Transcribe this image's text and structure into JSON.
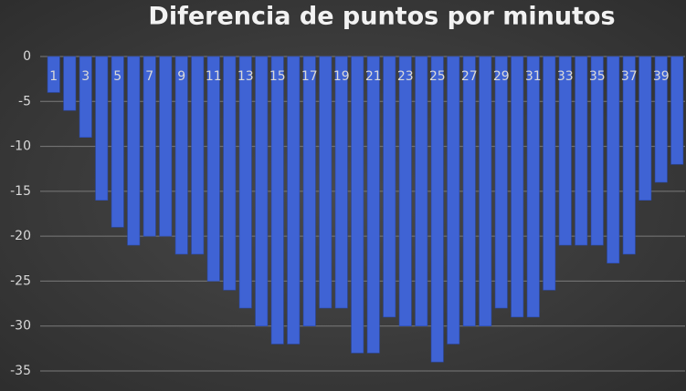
{
  "chart_data": {
    "type": "bar",
    "title": "Diferencia de puntos por minutos",
    "categories": [
      "1",
      null,
      "3",
      null,
      "5",
      null,
      "7",
      null,
      "9",
      null,
      "11",
      null,
      "13",
      null,
      "15",
      null,
      "17",
      null,
      "19",
      null,
      "21",
      null,
      "23",
      null,
      "25",
      null,
      "27",
      null,
      "29",
      null,
      "31",
      null,
      "33",
      null,
      "35",
      null,
      "37",
      null,
      "39",
      null
    ],
    "values": [
      -4,
      -6,
      -9,
      -16,
      -19,
      -21,
      -20,
      -20,
      -22,
      -22,
      -25,
      -26,
      -28,
      -30,
      -32,
      -32,
      -30,
      -28,
      -28,
      -33,
      -33,
      -29,
      -30,
      -30,
      -34,
      -32,
      -30,
      -30,
      -28,
      -29,
      -29,
      -26,
      -21,
      -21,
      -21,
      -23,
      -22,
      -16,
      -14,
      -12
    ],
    "color": "#3f63d4",
    "ylim": [
      -35,
      0
    ],
    "yticks": [
      0,
      -5,
      -10,
      -15,
      -20,
      -25,
      -30,
      -35
    ],
    "grid": true
  }
}
